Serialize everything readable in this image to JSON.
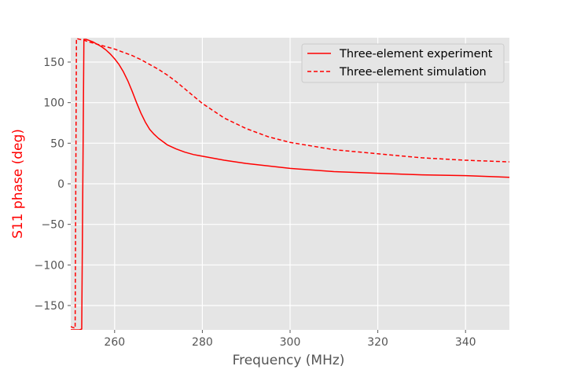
{
  "chart_data": {
    "type": "line",
    "title": "",
    "xlabel": "Frequency (MHz)",
    "ylabel": "S11 phase (deg)",
    "xlim": [
      250,
      350
    ],
    "ylim": [
      -180,
      180
    ],
    "xticks": [
      260,
      280,
      300,
      320,
      340
    ],
    "yticks": [
      -150,
      -100,
      -50,
      0,
      50,
      100,
      150
    ],
    "xtick_labels": [
      "260",
      "280",
      "300",
      "320",
      "340"
    ],
    "ytick_labels": [
      "−150",
      "−100",
      "−50",
      "0",
      "50",
      "100",
      "150"
    ],
    "grid": true,
    "legend_position": "top-right",
    "colors": {
      "plot_background": "#e5e5e5",
      "grid": "#ffffff",
      "series": "#ff0000",
      "tick_text": "#555555",
      "ylabel": "#ff0000",
      "xlabel": "#555555"
    },
    "series": [
      {
        "name": "Three-element experiment",
        "style": "solid",
        "x": [
          250,
          251,
          252,
          252.5,
          253,
          253.5,
          254,
          255,
          256,
          257,
          258,
          259,
          260,
          261,
          262,
          263,
          264,
          265,
          266,
          267,
          268,
          269,
          270,
          272,
          274,
          276,
          278,
          280,
          285,
          290,
          300,
          310,
          320,
          330,
          340,
          350
        ],
        "y": [
          -180,
          -180,
          -180,
          -179,
          178,
          178,
          177,
          175,
          172,
          169,
          165,
          160,
          154,
          147,
          138,
          127,
          114,
          100,
          87,
          76,
          67,
          61,
          56,
          48,
          43,
          39,
          36,
          34,
          29,
          25,
          19,
          15,
          13,
          11,
          10,
          8
        ]
      },
      {
        "name": "Three-element simulation",
        "style": "dashed",
        "x": [
          250,
          250.5,
          251,
          251.3,
          252,
          253,
          254,
          256,
          258,
          260,
          262,
          264,
          266,
          268,
          270,
          272,
          274,
          276,
          278,
          280,
          285,
          290,
          295,
          300,
          310,
          320,
          330,
          340,
          350
        ],
        "y": [
          -176,
          -177,
          -178,
          179,
          178,
          177,
          175,
          172,
          169,
          166,
          162,
          158,
          153,
          147,
          141,
          134,
          126,
          117,
          108,
          99,
          81,
          68,
          58,
          51,
          42,
          37,
          32,
          29,
          27
        ]
      }
    ]
  }
}
